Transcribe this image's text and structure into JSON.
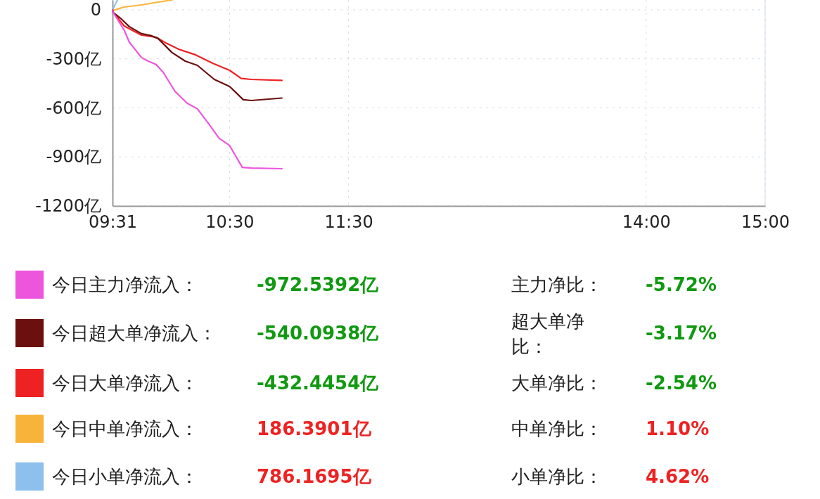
{
  "chart_data": {
    "type": "line",
    "xlim": [
      9.5167,
      15
    ],
    "xticks": [
      {
        "value": 9.5167,
        "label": "09:31"
      },
      {
        "value": 10.5,
        "label": "10:30"
      },
      {
        "value": 11.5,
        "label": "11:30"
      },
      {
        "value": 14,
        "label": "14:00"
      },
      {
        "value": 15,
        "label": "15:00"
      }
    ],
    "ylim": [
      -1200,
      60
    ],
    "yticks": [
      {
        "value": 0,
        "label": "0"
      },
      {
        "value": -300,
        "label": "-300亿"
      },
      {
        "value": -600,
        "label": "-600亿"
      },
      {
        "value": -900,
        "label": "-900亿"
      },
      {
        "value": -1200,
        "label": "-1200亿"
      }
    ],
    "grid": true,
    "legend": "bottom",
    "line_style": "solid",
    "marker": "none",
    "series": [
      {
        "name": "今日主力净流入：",
        "color": "#ee55dd",
        "x": [
          9.517,
          9.523,
          9.615,
          9.658,
          9.76,
          9.817,
          9.883,
          9.943,
          10.042,
          10.145,
          10.23,
          10.328,
          10.413,
          10.5,
          10.555,
          10.607,
          10.683,
          10.94
        ],
        "values": [
          0,
          -17,
          -125,
          -198,
          -292,
          -314,
          -335,
          -383,
          -499,
          -572,
          -606,
          -701,
          -787,
          -830,
          -899,
          -964,
          -968,
          -972
        ]
      },
      {
        "name": "今日超大单净流入：",
        "color": "#6b0f0f",
        "x": [
          9.517,
          9.523,
          9.59,
          9.658,
          9.76,
          9.845,
          9.9,
          10.017,
          10.128,
          10.23,
          10.372,
          10.5,
          10.555,
          10.615,
          10.683,
          10.94
        ],
        "values": [
          0,
          -17,
          -56,
          -103,
          -146,
          -159,
          -176,
          -262,
          -314,
          -340,
          -426,
          -469,
          -507,
          -550,
          -555,
          -540
        ]
      },
      {
        "name": "今日大单净流入：",
        "color": "#ee2222",
        "x": [
          9.517,
          9.523,
          9.615,
          9.76,
          9.883,
          9.973,
          10.072,
          10.213,
          10.358,
          10.5,
          10.598,
          10.683,
          10.94
        ],
        "values": [
          0,
          -17,
          -99,
          -155,
          -168,
          -206,
          -241,
          -275,
          -327,
          -370,
          -420,
          -426,
          -432
        ]
      },
      {
        "name": "今日中单净流入：",
        "color": "#f8b43a",
        "x": [
          9.517,
          9.523,
          9.615,
          9.76,
          9.9,
          10.017
        ],
        "values": [
          0,
          -4,
          17,
          30,
          47,
          60
        ]
      },
      {
        "name": "今日小单净流入：",
        "color": "#8ec0ee",
        "x": [
          9.517,
          9.558
        ],
        "values": [
          0,
          60
        ]
      }
    ],
    "annotations": [
      "-972.5392亿",
      "主力净比：",
      "-5.72%",
      "-540.0938亿",
      "超大单净比：",
      "-3.17%",
      "-432.4454亿",
      "大单净比：",
      "-2.54%",
      "186.3901亿",
      "中单净比：",
      "1.10%",
      "786.1695亿",
      "小单净比：",
      "4.62%"
    ]
  }
}
